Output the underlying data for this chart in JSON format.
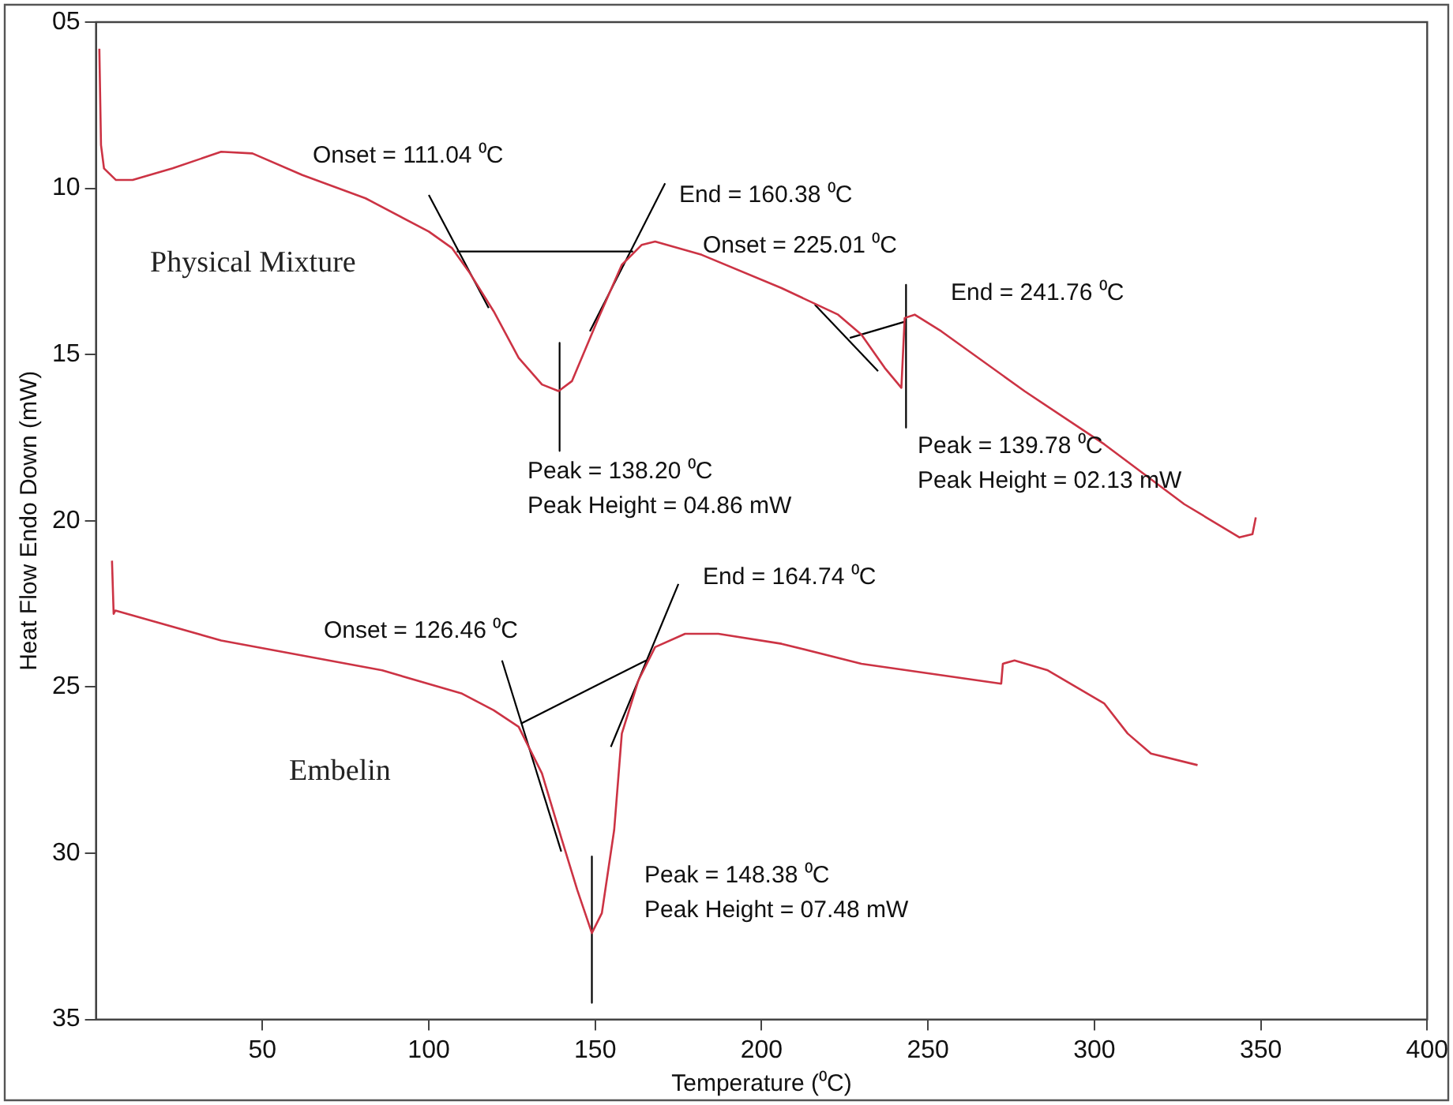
{
  "chart_data": {
    "type": "line",
    "xlabel": "Temperature (⁰C)",
    "ylabel": "Heat Flow Endo Down (mW)",
    "xlim": [
      0,
      400
    ],
    "xticks": [
      50,
      100,
      150,
      200,
      250,
      300,
      350,
      400
    ],
    "ylim": [
      35,
      5
    ],
    "yticks": [
      {
        "value": 5,
        "label": "05"
      },
      10,
      15,
      20,
      25,
      30,
      35
    ],
    "grid": false,
    "legend": false,
    "marker": "none",
    "line_style": "solid",
    "series": [
      {
        "name": "Physical Mixture",
        "color": "#cc3344",
        "x": [
          1,
          1.5,
          2.4,
          6,
          11,
          23,
          37.6,
          47,
          62,
          81,
          100,
          107,
          112,
          119.5,
          127,
          134,
          139,
          143,
          151,
          158,
          164,
          168,
          182,
          206,
          223,
          230,
          237,
          242,
          243,
          246,
          254,
          279,
          303,
          327,
          343.6,
          347.5,
          348.5
        ],
        "values": [
          5.8,
          8.7,
          9.4,
          9.75,
          9.75,
          9.4,
          8.9,
          8.95,
          9.6,
          10.3,
          11.3,
          11.8,
          12.5,
          13.7,
          15.1,
          15.9,
          16.1,
          15.8,
          13.9,
          12.3,
          11.7,
          11.6,
          12.0,
          13.0,
          13.8,
          14.4,
          15.4,
          16.0,
          13.9,
          13.8,
          14.3,
          16.1,
          17.7,
          19.5,
          20.5,
          20.4,
          19.9
        ]
      },
      {
        "name": "Embelin",
        "color": "#cc3344",
        "x": [
          4.8,
          5.3,
          5.8,
          37.6,
          86,
          110,
          119.5,
          127,
          134,
          140,
          144.6,
          149,
          152,
          155.7,
          158,
          163,
          168,
          177,
          187,
          206,
          230,
          272,
          272.5,
          276,
          286,
          303,
          310,
          317,
          331
        ],
        "values": [
          21.2,
          22.8,
          22.7,
          23.6,
          24.5,
          25.2,
          25.7,
          26.2,
          27.6,
          29.6,
          31.1,
          32.4,
          31.8,
          29.3,
          26.4,
          24.8,
          23.8,
          23.4,
          23.4,
          23.7,
          24.3,
          24.9,
          24.3,
          24.2,
          24.5,
          25.5,
          26.4,
          27.0,
          27.35
        ]
      },
      {
        "color": "#000000",
        "x": [
          100,
          118
        ],
        "values": [
          10.2,
          13.6
        ]
      },
      {
        "color": "#000000",
        "x": [
          108.4,
          161.4
        ],
        "values": [
          11.9,
          11.9
        ]
      },
      {
        "color": "#000000",
        "x": [
          148.4,
          171
        ],
        "values": [
          14.3,
          9.85
        ]
      },
      {
        "color": "#000000",
        "x": [
          139.3,
          139.3
        ],
        "values": [
          14.65,
          17.9
        ]
      },
      {
        "color": "#000000",
        "x": [
          216,
          235
        ],
        "values": [
          13.5,
          15.5
        ]
      },
      {
        "color": "#000000",
        "x": [
          226.5,
          243.4
        ],
        "values": [
          14.5,
          14.0
        ]
      },
      {
        "color": "#000000",
        "x": [
          243.4,
          243.4
        ],
        "values": [
          12.9,
          17.2
        ]
      },
      {
        "color": "#000000",
        "x": [
          122,
          139.8
        ],
        "values": [
          24.2,
          29.95
        ]
      },
      {
        "color": "#000000",
        "x": [
          127.7,
          165.3
        ],
        "values": [
          26.1,
          24.2
        ]
      },
      {
        "color": "#000000",
        "x": [
          154.7,
          175
        ],
        "values": [
          26.8,
          21.9
        ]
      },
      {
        "color": "#000000",
        "x": [
          149,
          149
        ],
        "values": [
          30.1,
          34.5
        ]
      }
    ],
    "annotations": [
      "Onset = 111.04 ⁰C",
      "End = 160.38 ⁰C",
      "Onset = 225.01 ⁰C",
      "End = 241.76 ⁰C",
      "Peak = 138.20 ⁰C\nPeak Height = 04.86 mW",
      "Peak = 139.78 ⁰C\nPeak Height = 02.13 mW",
      "End = 164.74 ⁰C",
      "Onset = 126.46 ⁰C",
      "Peak = 148.38 ⁰C\nPeak Height = 07.48 mW"
    ]
  }
}
